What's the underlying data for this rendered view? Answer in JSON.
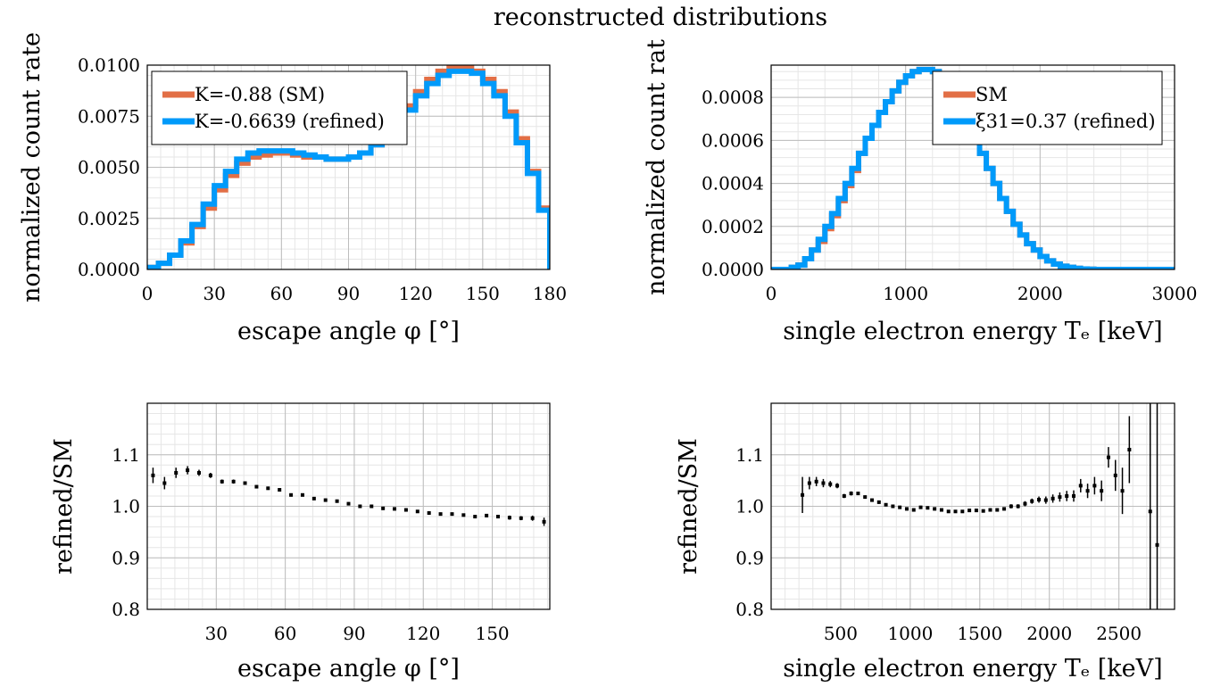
{
  "title": "reconstructed distributions",
  "colors": {
    "sm": "#E26F46",
    "refined": "#009AFA",
    "points": "#000000",
    "grid": "#888888"
  },
  "chart_data": [
    {
      "type": "line",
      "panel": "top-left",
      "step": true,
      "xlabel": "escape angle φ [°]",
      "ylabel": "normalized count rate",
      "xlim": [
        0,
        180
      ],
      "ylim": [
        0,
        0.01
      ],
      "xticks": [
        0,
        30,
        60,
        90,
        120,
        150,
        180
      ],
      "xtick_labels": [
        "0",
        "30",
        "60",
        "90",
        "120",
        "150",
        "180"
      ],
      "yticks": [
        0,
        0.0025,
        0.005,
        0.0075,
        0.01
      ],
      "ytick_labels": [
        "0.0000",
        "0.0025",
        "0.0050",
        "0.0075",
        "0.0100"
      ],
      "legend_position": "top-left",
      "bin_edges": [
        0,
        5,
        10,
        15,
        20,
        25,
        30,
        35,
        40,
        45,
        50,
        55,
        60,
        65,
        70,
        75,
        80,
        85,
        90,
        95,
        100,
        105,
        110,
        115,
        120,
        125,
        130,
        135,
        140,
        145,
        150,
        155,
        160,
        165,
        170,
        175,
        180
      ],
      "series": [
        {
          "name": "K=-0.88 (SM)",
          "color_key": "sm",
          "values": [
            0.0001,
            0.0003,
            0.0007,
            0.0013,
            0.0021,
            0.003,
            0.0039,
            0.0046,
            0.0052,
            0.0055,
            0.0056,
            0.0057,
            0.0057,
            0.0056,
            0.0055,
            0.0055,
            0.0054,
            0.0054,
            0.0055,
            0.0057,
            0.0061,
            0.0066,
            0.0072,
            0.008,
            0.0087,
            0.0093,
            0.0097,
            0.0099,
            0.0099,
            0.0097,
            0.0093,
            0.0087,
            0.0077,
            0.0064,
            0.0048,
            0.003
          ]
        },
        {
          "name": "K=-0.6639 (refined)",
          "color_key": "refined",
          "values": [
            0.0001,
            0.0003,
            0.0007,
            0.0014,
            0.0022,
            0.0032,
            0.0041,
            0.0048,
            0.0054,
            0.0057,
            0.0058,
            0.0058,
            0.0058,
            0.0057,
            0.0056,
            0.0055,
            0.0054,
            0.0054,
            0.0055,
            0.0057,
            0.0061,
            0.0065,
            0.0071,
            0.0078,
            0.0085,
            0.0091,
            0.0095,
            0.0097,
            0.0097,
            0.0096,
            0.0091,
            0.0085,
            0.0075,
            0.0062,
            0.0047,
            0.0029
          ]
        }
      ]
    },
    {
      "type": "line",
      "panel": "top-right",
      "step": true,
      "xlabel": "single electron energy Tₑ [keV]",
      "ylabel": "normalized count rat",
      "xlim": [
        0,
        3000
      ],
      "ylim": [
        0,
        0.00095
      ],
      "xticks": [
        0,
        1000,
        2000,
        3000
      ],
      "xtick_labels": [
        "0",
        "1000",
        "2000",
        "3000"
      ],
      "yticks": [
        0,
        0.0002,
        0.0004,
        0.0006,
        0.0008
      ],
      "ytick_labels": [
        "0.0000",
        "0.0002",
        "0.0004",
        "0.0006",
        "0.0008"
      ],
      "legend_position": "top-right",
      "bin_edges": [
        0,
        50,
        100,
        150,
        200,
        250,
        300,
        350,
        400,
        450,
        500,
        550,
        600,
        650,
        700,
        750,
        800,
        850,
        900,
        950,
        1000,
        1050,
        1100,
        1150,
        1200,
        1250,
        1300,
        1350,
        1400,
        1450,
        1500,
        1550,
        1600,
        1650,
        1700,
        1750,
        1800,
        1850,
        1900,
        1950,
        2000,
        2050,
        2100,
        2150,
        2200,
        2250,
        2300,
        2350,
        2400,
        2450,
        2500,
        2550,
        2600,
        2650,
        2700,
        2750,
        2800,
        2850,
        2900,
        2950,
        3000
      ],
      "series": [
        {
          "name": "SM",
          "color_key": "sm",
          "values": [
            0.0,
            0.0,
            0.0,
            1e-05,
            2e-05,
            5e-05,
            9e-05,
            0.00013,
            0.00019,
            0.00025,
            0.00032,
            0.00039,
            0.00046,
            0.00054,
            0.00061,
            0.00067,
            0.00073,
            0.00078,
            0.00083,
            0.00087,
            0.0009,
            0.00092,
            0.00093,
            0.00093,
            0.00092,
            0.00089,
            0.00085,
            0.0008,
            0.00074,
            0.00068,
            0.00061,
            0.00054,
            0.00047,
            0.0004,
            0.00033,
            0.00027,
            0.00021,
            0.00016,
            0.00012,
            9e-05,
            6e-05,
            4e-05,
            2.5e-05,
            1.5e-05,
            1e-05,
            5e-06,
            2e-06,
            1e-06,
            0.0,
            0.0,
            0.0,
            0.0,
            0.0,
            0.0,
            0.0,
            0.0,
            0.0,
            0.0,
            0.0,
            0.0
          ]
        },
        {
          "name": "ξ31=0.37 (refined)",
          "color_key": "refined",
          "values": [
            0.0,
            0.0,
            0.0,
            1e-05,
            2e-05,
            5e-05,
            9e-05,
            0.00014,
            0.0002,
            0.00026,
            0.00033,
            0.0004,
            0.00047,
            0.00054,
            0.00061,
            0.00067,
            0.00073,
            0.00078,
            0.00083,
            0.00087,
            0.0009,
            0.00092,
            0.00093,
            0.00093,
            0.00092,
            0.00089,
            0.00085,
            0.0008,
            0.00074,
            0.00068,
            0.00061,
            0.00054,
            0.00047,
            0.0004,
            0.00033,
            0.00027,
            0.00021,
            0.00016,
            0.00012,
            9e-05,
            6e-05,
            4e-05,
            2.5e-05,
            1.5e-05,
            1e-05,
            5e-06,
            2e-06,
            1e-06,
            0.0,
            0.0,
            0.0,
            0.0,
            0.0,
            0.0,
            0.0,
            0.0,
            0.0,
            0.0,
            0.0,
            0.0
          ]
        }
      ]
    },
    {
      "type": "scatter",
      "panel": "bottom-left",
      "errorbars": true,
      "xlabel": "escape angle φ [°]",
      "ylabel": "refined/SM",
      "xlim": [
        0,
        175
      ],
      "ylim": [
        0.8,
        1.2
      ],
      "xticks": [
        30,
        60,
        90,
        120,
        150
      ],
      "xtick_labels": [
        "30",
        "60",
        "90",
        "120",
        "150"
      ],
      "yticks": [
        0.8,
        0.9,
        1.0,
        1.1
      ],
      "ytick_labels": [
        "0.8",
        "0.9",
        "1.0",
        "1.1"
      ],
      "x": [
        2.5,
        7.5,
        12.5,
        17.5,
        22.5,
        27.5,
        32.5,
        37.5,
        42.5,
        47.5,
        52.5,
        57.5,
        62.5,
        67.5,
        72.5,
        77.5,
        82.5,
        87.5,
        92.5,
        97.5,
        102.5,
        107.5,
        112.5,
        117.5,
        122.5,
        127.5,
        132.5,
        137.5,
        142.5,
        147.5,
        152.5,
        157.5,
        162.5,
        167.5,
        172.5
      ],
      "y": [
        1.06,
        1.045,
        1.065,
        1.07,
        1.065,
        1.06,
        1.048,
        1.048,
        1.045,
        1.038,
        1.035,
        1.032,
        1.022,
        1.022,
        1.015,
        1.012,
        1.01,
        1.005,
        1.0,
        1.0,
        0.996,
        0.995,
        0.993,
        0.99,
        0.987,
        0.985,
        0.985,
        0.983,
        0.98,
        0.982,
        0.98,
        0.978,
        0.977,
        0.977,
        0.97
      ],
      "err": [
        0.015,
        0.012,
        0.01,
        0.008,
        0.006,
        0.005,
        0.004,
        0.004,
        0.003,
        0.003,
        0.003,
        0.003,
        0.003,
        0.003,
        0.003,
        0.003,
        0.003,
        0.003,
        0.003,
        0.003,
        0.003,
        0.003,
        0.003,
        0.003,
        0.003,
        0.003,
        0.003,
        0.003,
        0.003,
        0.003,
        0.003,
        0.004,
        0.004,
        0.005,
        0.008
      ]
    },
    {
      "type": "scatter",
      "panel": "bottom-right",
      "errorbars": true,
      "xlabel": "single electron energy Tₑ [keV]",
      "ylabel": "refined/SM",
      "xlim": [
        0,
        2900
      ],
      "ylim": [
        0.8,
        1.2
      ],
      "xticks": [
        500,
        1000,
        1500,
        2000,
        2500
      ],
      "xtick_labels": [
        "500",
        "1000",
        "1500",
        "2000",
        "2500"
      ],
      "yticks": [
        0.8,
        0.9,
        1.0,
        1.1
      ],
      "ytick_labels": [
        "0.8",
        "0.9",
        "1.0",
        "1.1"
      ],
      "x": [
        225,
        275,
        325,
        375,
        425,
        475,
        525,
        575,
        625,
        675,
        725,
        775,
        825,
        875,
        925,
        975,
        1025,
        1075,
        1125,
        1175,
        1225,
        1275,
        1325,
        1375,
        1425,
        1475,
        1525,
        1575,
        1625,
        1675,
        1725,
        1775,
        1825,
        1875,
        1925,
        1975,
        2025,
        2075,
        2125,
        2175,
        2225,
        2275,
        2325,
        2375,
        2425,
        2475,
        2525,
        2575,
        2625,
        2675,
        2725,
        2775
      ],
      "y": [
        1.022,
        1.045,
        1.048,
        1.045,
        1.043,
        1.04,
        1.02,
        1.025,
        1.025,
        1.018,
        1.012,
        1.008,
        1.003,
        1.0,
        0.998,
        0.995,
        0.993,
        0.998,
        0.997,
        0.995,
        0.993,
        0.99,
        0.99,
        0.99,
        0.992,
        0.992,
        0.991,
        0.993,
        0.993,
        0.995,
        1.0,
        1.0,
        1.005,
        1.01,
        1.013,
        1.012,
        1.015,
        1.018,
        1.02,
        1.02,
        1.04,
        1.03,
        1.04,
        1.03,
        1.095,
        1.06,
        1.03,
        1.11,
        null,
        null,
        0.99,
        0.925
      ],
      "err": [
        0.035,
        0.012,
        0.009,
        0.008,
        0.006,
        0.005,
        0.004,
        0.004,
        0.003,
        0.003,
        0.003,
        0.003,
        0.003,
        0.003,
        0.003,
        0.003,
        0.003,
        0.003,
        0.003,
        0.003,
        0.003,
        0.003,
        0.003,
        0.003,
        0.003,
        0.003,
        0.003,
        0.003,
        0.003,
        0.003,
        0.004,
        0.004,
        0.005,
        0.005,
        0.006,
        0.007,
        0.008,
        0.009,
        0.01,
        0.011,
        0.013,
        0.014,
        0.017,
        0.02,
        0.02,
        0.03,
        0.045,
        0.065,
        null,
        null,
        0.3,
        0.35
      ]
    }
  ]
}
